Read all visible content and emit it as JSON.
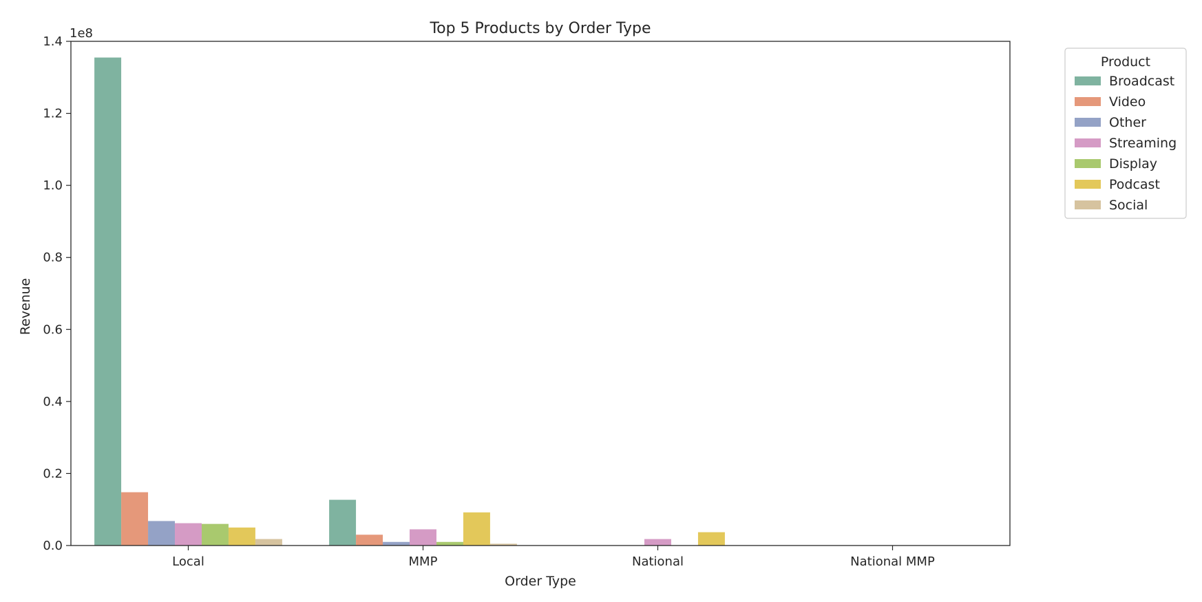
{
  "chart_data": {
    "type": "bar",
    "title": "Top 5 Products by Order Type",
    "xlabel": "Order Type",
    "ylabel": "Revenue",
    "y_offset_text": "1e8",
    "y_scale": 100000000,
    "ylim": [
      0,
      1.4
    ],
    "yticks": [
      "0.0",
      "0.2",
      "0.4",
      "0.6",
      "0.8",
      "1.0",
      "1.2",
      "1.4"
    ],
    "categories": [
      "Local",
      "MMP",
      "National",
      "National MMP"
    ],
    "legend": {
      "title": "Product",
      "placement": "outside-right-top"
    },
    "grid": false,
    "series": [
      {
        "name": "Broadcast",
        "color": "#7fb3a0",
        "values": [
          1.355,
          0.127,
          0,
          0
        ]
      },
      {
        "name": "Video",
        "color": "#e5987a",
        "values": [
          0.148,
          0.03,
          0,
          0
        ]
      },
      {
        "name": "Other",
        "color": "#94a2c6",
        "values": [
          0.068,
          0.01,
          0,
          0
        ]
      },
      {
        "name": "Streaming",
        "color": "#d59bc5",
        "values": [
          0.062,
          0.045,
          0.018,
          0
        ]
      },
      {
        "name": "Display",
        "color": "#a9c96e",
        "values": [
          0.06,
          0.01,
          0,
          0
        ]
      },
      {
        "name": "Podcast",
        "color": "#e3c85a",
        "values": [
          0.05,
          0.092,
          0.037,
          0
        ]
      },
      {
        "name": "Social",
        "color": "#d6c39f",
        "values": [
          0.018,
          0.005,
          0,
          0
        ]
      }
    ]
  }
}
